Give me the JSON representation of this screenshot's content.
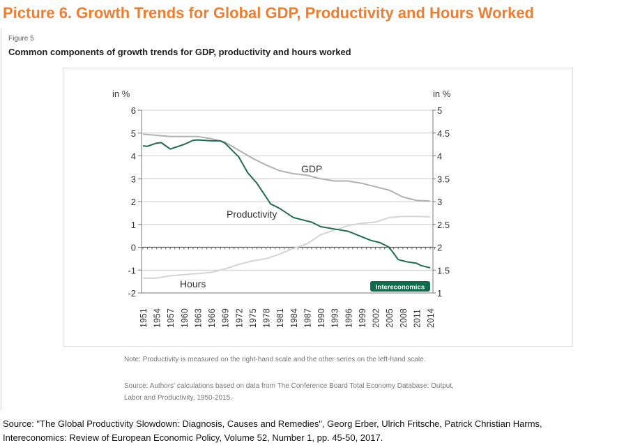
{
  "header": {
    "title": "Picture 6. Growth Trends for Global GDP, Productivity and Hours Worked"
  },
  "figure": {
    "label": "Figure 5",
    "title": "Common components of growth trends for GDP, productivity and hours worked",
    "note": "Note: Productivity is measured on the right-hand scale and the other series on the left-hand scale.",
    "source": "Source: Authors' calculations based on data from The Conference Board Total Economy Database: Output, Labor and Productivity, 1950-2015.",
    "badge": "Intereconomics"
  },
  "footer": {
    "line1": "Source: \"The Global Productivity Slowdown: Diagnosis, Causes and Remedies\", Georg Erber, Ulrich Fritsche, Patrick Christian Harms,",
    "line2": "Intereconomics: Review of European Economic Policy, Volume 52, Number 1, pp. 45-50, 2017."
  },
  "chart_data": {
    "type": "line",
    "title": "Common components of growth trends for GDP, productivity and hours worked",
    "ylabel_left": "in %",
    "ylabel_right": "in %",
    "ylim_left": [
      -2,
      6
    ],
    "ylim_right": [
      1,
      5
    ],
    "yticks_left": [
      6,
      5,
      4,
      3,
      2,
      1,
      0,
      -1,
      -2
    ],
    "yticks_right": [
      5,
      4.5,
      4,
      3.5,
      3,
      2.5,
      2,
      1.5,
      1
    ],
    "xticks": [
      1951,
      1954,
      1957,
      1960,
      1963,
      1966,
      1969,
      1972,
      1975,
      1978,
      1981,
      1984,
      1987,
      1990,
      1993,
      1996,
      1999,
      2002,
      2005,
      2008,
      2011,
      2014
    ],
    "grid": true,
    "colors": {
      "GDP": "#b0b0b0",
      "Hours": "#d4d4d4",
      "Productivity": "#1f6b4f",
      "badge": "#0e6b4c"
    },
    "series": [
      {
        "name": "GDP",
        "axis": "left",
        "x": [
          1951,
          1954,
          1957,
          1960,
          1963,
          1966,
          1969,
          1972,
          1975,
          1978,
          1981,
          1984,
          1987,
          1990,
          1993,
          1996,
          1999,
          2002,
          2005,
          2008,
          2011,
          2014
        ],
        "y": [
          4.95,
          4.9,
          4.85,
          4.85,
          4.85,
          4.75,
          4.6,
          4.25,
          3.9,
          3.6,
          3.35,
          3.22,
          3.15,
          3.0,
          2.9,
          2.9,
          2.8,
          2.65,
          2.5,
          2.2,
          2.05,
          2.02
        ]
      },
      {
        "name": "Hours",
        "axis": "left",
        "x": [
          1951,
          1954,
          1957,
          1960,
          1963,
          1966,
          1969,
          1972,
          1975,
          1978,
          1981,
          1984,
          1987,
          1990,
          1993,
          1996,
          1999,
          2002,
          2005,
          2008,
          2011,
          2014
        ],
        "y": [
          -1.35,
          -1.35,
          -1.25,
          -1.2,
          -1.15,
          -1.1,
          -0.95,
          -0.75,
          -0.6,
          -0.5,
          -0.3,
          -0.05,
          0.15,
          0.55,
          0.75,
          0.95,
          1.05,
          1.1,
          1.3,
          1.35,
          1.35,
          1.33
        ]
      },
      {
        "name": "Productivity",
        "axis": "right",
        "x": [
          1951,
          1952,
          1954,
          1955,
          1957,
          1960,
          1962,
          1963,
          1966,
          1968,
          1969,
          1972,
          1974,
          1976,
          1978,
          1979,
          1981,
          1984,
          1986,
          1988,
          1990,
          1993,
          1996,
          1999,
          2001,
          2003,
          2005,
          2007,
          2009,
          2011,
          2012,
          2014
        ],
        "y": [
          4.22,
          4.21,
          4.28,
          4.29,
          4.15,
          4.25,
          4.34,
          4.35,
          4.33,
          4.33,
          4.28,
          3.98,
          3.63,
          3.4,
          3.1,
          2.95,
          2.85,
          2.65,
          2.6,
          2.55,
          2.45,
          2.4,
          2.35,
          2.23,
          2.15,
          2.1,
          2.0,
          1.73,
          1.68,
          1.65,
          1.6,
          1.55
        ]
      }
    ]
  }
}
